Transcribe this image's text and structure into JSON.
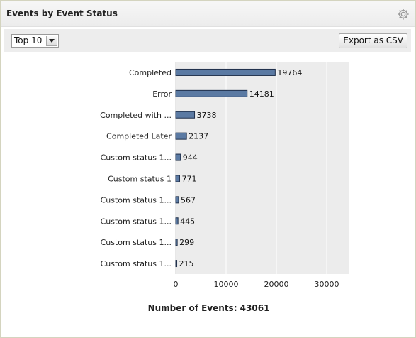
{
  "widget": {
    "title": "Events by Event Status",
    "settings_icon": "gear-icon"
  },
  "toolbar": {
    "top_select_value": "Top 10",
    "export_label": "Export as CSV"
  },
  "chart_data": {
    "type": "bar",
    "orientation": "horizontal",
    "categories": [
      "Completed",
      "Error",
      "Completed with ...",
      "Completed Later",
      "Custom status 1...",
      "Custom status 1",
      "Custom status 1...",
      "Custom status 1...",
      "Custom status 1...",
      "Custom status 1..."
    ],
    "values": [
      19764,
      14181,
      3738,
      2137,
      944,
      771,
      567,
      445,
      299,
      215
    ],
    "xticks": [
      0,
      10000,
      20000,
      30000
    ],
    "xlim": [
      0,
      34500
    ],
    "grid": true,
    "bar_color": "#5b7aa3",
    "title": "",
    "xlabel": "",
    "ylabel": ""
  },
  "footer": {
    "total_label": "Number of Events: 43061"
  }
}
